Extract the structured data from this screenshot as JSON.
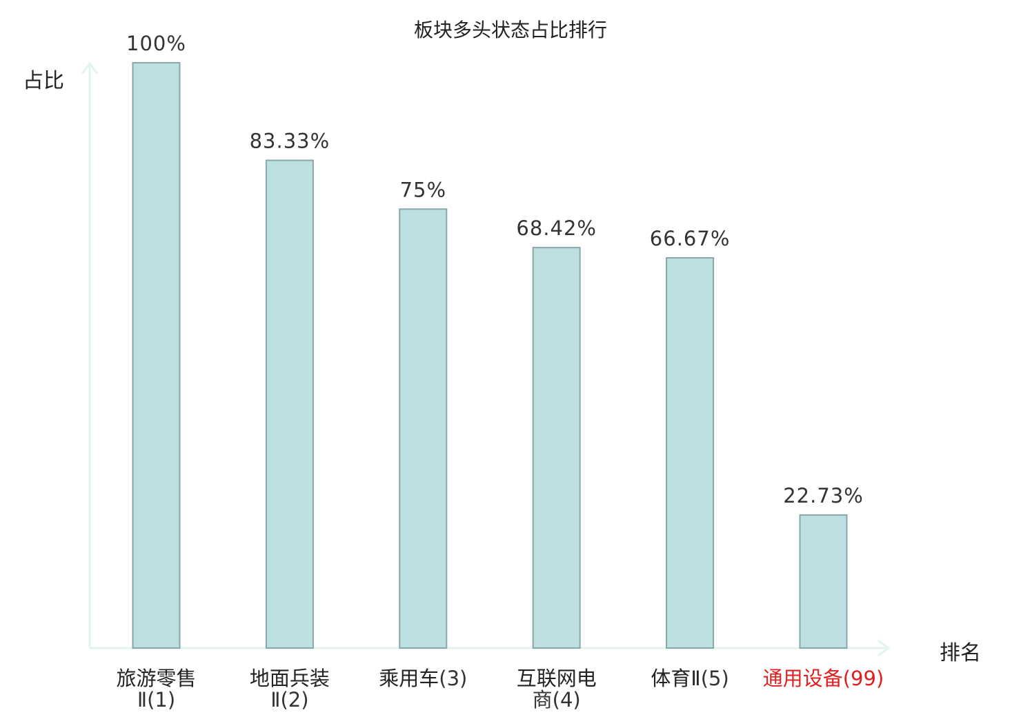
{
  "chart_data": {
    "type": "bar",
    "title": "板块多头状态占比排行",
    "ylabel": "占比",
    "xlabel": "排名",
    "categories": [
      {
        "name": "旅游零售",
        "rank": "Ⅱ(1)"
      },
      {
        "name": "地面兵装",
        "rank": "Ⅱ(2)"
      },
      {
        "name": "乘用车",
        "rank": "(3)"
      },
      {
        "name": "互联网电",
        "rank": "商(4)"
      },
      {
        "name": "体育Ⅱ",
        "rank": "(5)"
      },
      {
        "name": "通用设备",
        "rank": "(99)"
      }
    ],
    "values": [
      100,
      83.33,
      75,
      68.42,
      66.67,
      22.73
    ],
    "value_labels": [
      "100%",
      "83.33%",
      "75%",
      "68.42%",
      "66.67%",
      "22.73%"
    ],
    "ylim": [
      0,
      100
    ],
    "grid": false,
    "colors": {
      "bar_fill": "#bce0e2",
      "bar_stroke": "#87a7a9",
      "axis": "#e2f3f1",
      "highlight": "#e02020",
      "text": "#333333"
    },
    "highlight_index": 5
  }
}
